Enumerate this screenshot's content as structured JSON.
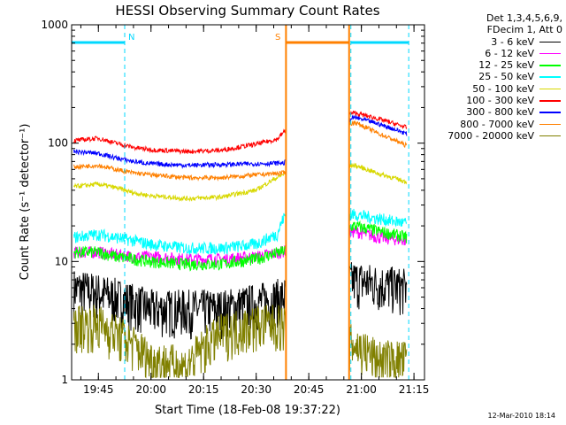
{
  "chart_data": {
    "type": "line",
    "title": "HESSI Observing Summary Count Rates",
    "xlabel": "Start Time (18-Feb-08 19:37:22)",
    "ylabel": "Count Rate (s⁻¹ detector⁻¹)",
    "ylim": [
      1,
      1000
    ],
    "yscale": "log",
    "y_ticks": [
      "1",
      "10",
      "100",
      "1000"
    ],
    "x_range": [
      "19:37:22",
      "21:18:00"
    ],
    "x_ticks": [
      "19:45",
      "20:00",
      "20:15",
      "20:30",
      "20:45",
      "21:00",
      "21:15"
    ],
    "gaps": [
      [
        "20:38:30",
        "20:56:30"
      ]
    ],
    "flags": [
      {
        "label": "N",
        "color": "#00d8ff",
        "start": "19:37:22",
        "end": "19:52:30"
      },
      {
        "label": "S",
        "color": "#ff8000",
        "start": "20:38:30",
        "end": "20:56:30"
      },
      {
        "label": "",
        "color": "#00d8ff",
        "start": "20:57:00",
        "end": "21:13:30"
      }
    ],
    "legend_header": [
      "Det 1,3,4,5,6,9,",
      "FDecim 1, Att 0"
    ],
    "series": [
      {
        "name": "3 - 6 keV",
        "color": "#000000",
        "x": [
          "19:38",
          "19:45",
          "19:50",
          "19:55",
          "20:00",
          "20:10",
          "20:20",
          "20:30",
          "20:37",
          "20:58",
          "21:05",
          "21:13"
        ],
        "y": [
          6,
          5.5,
          5,
          4.5,
          4,
          4,
          4,
          4.5,
          5,
          7,
          6.5,
          6
        ]
      },
      {
        "name": "6 - 12 keV",
        "color": "#ff00ff",
        "x": [
          "19:38",
          "19:45",
          "19:50",
          "19:55",
          "20:00",
          "20:10",
          "20:20",
          "20:30",
          "20:37",
          "20:58",
          "21:05",
          "21:13"
        ],
        "y": [
          12,
          12,
          11.5,
          11,
          11,
          10.5,
          10.5,
          11,
          12,
          18,
          16,
          15
        ]
      },
      {
        "name": "12 - 25 keV",
        "color": "#00ff00",
        "x": [
          "19:38",
          "19:45",
          "19:50",
          "19:55",
          "20:00",
          "20:10",
          "20:20",
          "20:30",
          "20:37",
          "20:58",
          "21:05",
          "21:13"
        ],
        "y": [
          12,
          12,
          11,
          10.5,
          10,
          9.5,
          9.5,
          10.5,
          12,
          20,
          18,
          16
        ]
      },
      {
        "name": "25 - 50 keV",
        "color": "#00ffff",
        "x": [
          "19:38",
          "19:45",
          "19:50",
          "19:55",
          "20:00",
          "20:10",
          "20:20",
          "20:30",
          "20:36",
          "20:38",
          "20:58",
          "21:05",
          "21:13"
        ],
        "y": [
          16,
          17,
          16,
          15,
          14,
          13,
          13,
          14,
          17,
          24,
          25,
          23,
          21
        ]
      },
      {
        "name": "50 - 100 keV",
        "color": "#d8d800",
        "x": [
          "19:38",
          "19:45",
          "19:50",
          "19:55",
          "20:00",
          "20:10",
          "20:20",
          "20:30",
          "20:38",
          "20:58",
          "21:05",
          "21:13"
        ],
        "y": [
          43,
          45,
          42,
          38,
          36,
          34,
          35,
          40,
          55,
          65,
          55,
          47
        ]
      },
      {
        "name": "100 - 300 keV",
        "color": "#ff0000",
        "x": [
          "19:38",
          "19:45",
          "19:50",
          "19:55",
          "20:00",
          "20:10",
          "20:20",
          "20:30",
          "20:36",
          "20:38",
          "20:58",
          "21:05",
          "21:13"
        ],
        "y": [
          105,
          110,
          100,
          92,
          88,
          85,
          87,
          98,
          108,
          125,
          180,
          160,
          135
        ]
      },
      {
        "name": "300 - 800 keV",
        "color": "#0000ff",
        "x": [
          "19:38",
          "19:45",
          "19:50",
          "19:55",
          "20:00",
          "20:10",
          "20:20",
          "20:30",
          "20:38",
          "20:58",
          "21:05",
          "21:13"
        ],
        "y": [
          85,
          82,
          75,
          70,
          67,
          65,
          66,
          67,
          68,
          165,
          145,
          120
        ]
      },
      {
        "name": "800 - 7000 keV",
        "color": "#ff8000",
        "x": [
          "19:38",
          "19:45",
          "19:50",
          "19:55",
          "20:00",
          "20:10",
          "20:20",
          "20:30",
          "20:38",
          "20:58",
          "21:05",
          "21:13"
        ],
        "y": [
          63,
          65,
          60,
          56,
          54,
          51,
          51,
          54,
          56,
          150,
          120,
          95
        ]
      },
      {
        "name": "7000 - 20000 keV",
        "color": "#808000",
        "x": [
          "19:38",
          "19:45",
          "19:50",
          "19:55",
          "20:00",
          "20:10",
          "20:20",
          "20:30",
          "20:37",
          "20:58",
          "21:05",
          "21:13"
        ],
        "y": [
          3,
          3,
          2.5,
          2,
          1.5,
          1.3,
          2.5,
          3,
          3,
          2,
          1.5,
          1.5
        ]
      }
    ]
  },
  "timestamp": "12-Mar-2010 18:14"
}
